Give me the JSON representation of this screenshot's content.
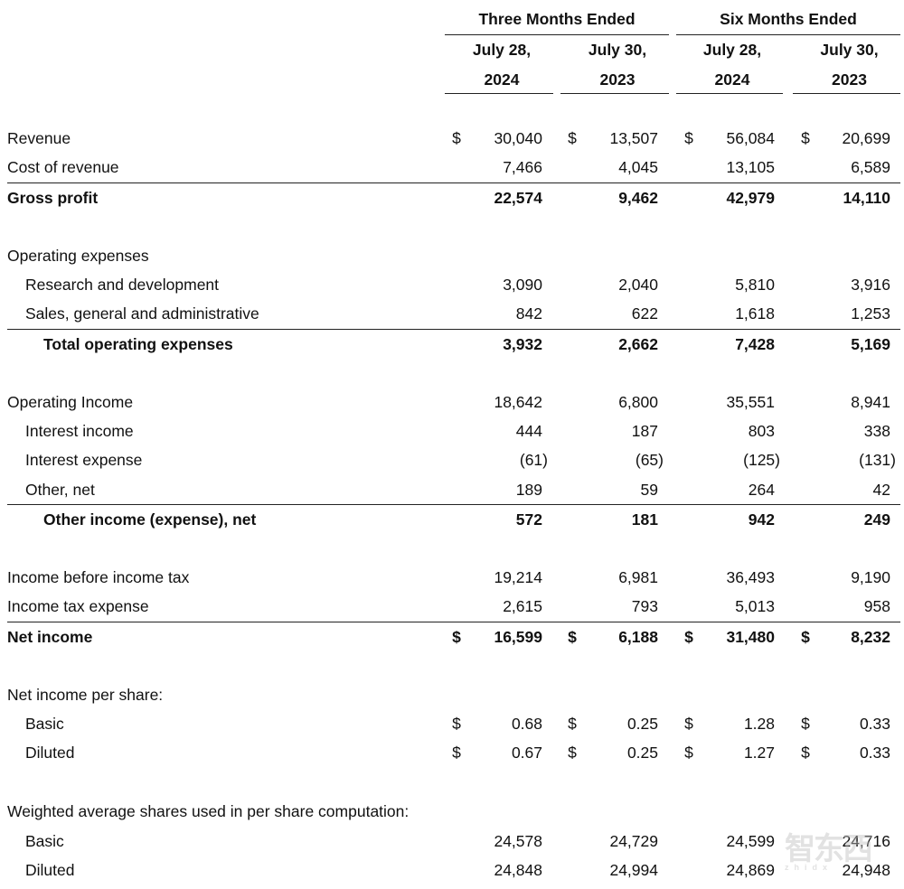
{
  "header": {
    "groups": [
      "Three Months Ended",
      "Six Months Ended"
    ],
    "columns": [
      {
        "line1": "July 28,",
        "line2": "2024"
      },
      {
        "line1": "July 30,",
        "line2": "2023"
      },
      {
        "line1": "July 28,",
        "line2": "2024"
      },
      {
        "line1": "July 30,",
        "line2": "2023"
      }
    ]
  },
  "rows": [
    {
      "label": "Revenue",
      "indent": 0,
      "currency": "$",
      "values": [
        "30,040",
        "13,507",
        "56,084",
        "20,699"
      ]
    },
    {
      "label": "Cost of revenue",
      "indent": 0,
      "values": [
        "7,466",
        "4,045",
        "13,105",
        "6,589"
      ]
    },
    {
      "label": "Gross profit",
      "indent": 0,
      "bold": true,
      "rule": true,
      "values": [
        "22,574",
        "9,462",
        "42,979",
        "14,110"
      ]
    },
    {
      "spacer": true
    },
    {
      "label": "Operating expenses",
      "indent": 0
    },
    {
      "label": "Research and development",
      "indent": 1,
      "values": [
        "3,090",
        "2,040",
        "5,810",
        "3,916"
      ]
    },
    {
      "label": "Sales, general and administrative",
      "indent": 1,
      "values": [
        "842",
        "622",
        "1,618",
        "1,253"
      ]
    },
    {
      "label": "Total operating expenses",
      "indent": 2,
      "bold": true,
      "rule": true,
      "values": [
        "3,932",
        "2,662",
        "7,428",
        "5,169"
      ]
    },
    {
      "spacer": true
    },
    {
      "label": "Operating Income",
      "indent": 0,
      "values": [
        "18,642",
        "6,800",
        "35,551",
        "8,941"
      ]
    },
    {
      "label": "Interest income",
      "indent": 1,
      "values": [
        "444",
        "187",
        "803",
        "338"
      ]
    },
    {
      "label": "Interest expense",
      "indent": 1,
      "values": [
        "(61)",
        "(65)",
        "(125)",
        "(131)"
      ]
    },
    {
      "label": "Other, net",
      "indent": 1,
      "values": [
        "189",
        "59",
        "264",
        "42"
      ]
    },
    {
      "label": "Other income (expense), net",
      "indent": 2,
      "bold": true,
      "rule": true,
      "values": [
        "572",
        "181",
        "942",
        "249"
      ]
    },
    {
      "spacer": true
    },
    {
      "label": "Income before income tax",
      "indent": 0,
      "values": [
        "19,214",
        "6,981",
        "36,493",
        "9,190"
      ]
    },
    {
      "label": "Income tax expense",
      "indent": 0,
      "values": [
        "2,615",
        "793",
        "5,013",
        "958"
      ]
    },
    {
      "label": "Net income",
      "indent": 0,
      "bold": true,
      "rule": true,
      "currency": "$",
      "values": [
        "16,599",
        "6,188",
        "31,480",
        "8,232"
      ]
    },
    {
      "spacer": true
    },
    {
      "label": "Net income per share:",
      "indent": 0
    },
    {
      "label": "Basic",
      "indent": 1,
      "currency": "$",
      "values": [
        "0.68",
        "0.25",
        "1.28",
        "0.33"
      ]
    },
    {
      "label": "Diluted",
      "indent": 1,
      "currency": "$",
      "values": [
        "0.67",
        "0.25",
        "1.27",
        "0.33"
      ]
    },
    {
      "spacer": true
    },
    {
      "label": "Weighted average shares used in per share computation:",
      "indent": 0
    },
    {
      "label": "Basic",
      "indent": 1,
      "values": [
        "24,578",
        "24,729",
        "24,599",
        "24,716"
      ]
    },
    {
      "label": "Diluted",
      "indent": 1,
      "values": [
        "24,848",
        "24,994",
        "24,869",
        "24,948"
      ]
    }
  ],
  "watermark": {
    "main": "智东西",
    "sub": "zhidx"
  }
}
